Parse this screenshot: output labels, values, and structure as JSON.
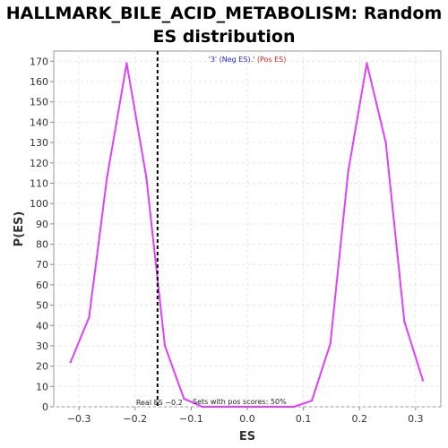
{
  "title_lines": [
    "HALLMARK_BILE_ACID_METABOLISM: Random",
    "ES distribution"
  ],
  "chart_data": {
    "type": "line",
    "title": "HALLMARK_BILE_ACID_METABOLISM: Random ES distribution",
    "xlabel": "ES",
    "ylabel": "P(ES)",
    "xlim": [
      -0.345,
      0.345
    ],
    "ylim": [
      0,
      175
    ],
    "xticks": [
      -0.3,
      -0.2,
      -0.1,
      0.0,
      0.1,
      0.2,
      0.3
    ],
    "xtick_labels": [
      "−0.3",
      "−0.2",
      "−0.1",
      "0.0",
      "0.1",
      "0.2",
      "0.3"
    ],
    "yticks": [
      0,
      10,
      20,
      30,
      40,
      50,
      60,
      70,
      80,
      90,
      100,
      110,
      120,
      130,
      140,
      150,
      160,
      170
    ],
    "grid": true,
    "series": [
      {
        "color": "#e040fb",
        "x": [
          -0.315,
          -0.282,
          -0.25,
          -0.215,
          -0.18,
          -0.147,
          -0.113,
          -0.08,
          -0.048,
          -0.015,
          0.018,
          0.05,
          0.083,
          0.115,
          0.148,
          0.18,
          0.213,
          0.247,
          0.28,
          0.313
        ],
        "y": [
          22,
          44,
          113,
          169,
          113,
          30,
          4,
          0,
          0,
          0,
          0,
          0,
          0,
          3,
          31,
          116,
          169,
          130,
          42,
          13
        ]
      }
    ],
    "reference_line": {
      "x": -0.16,
      "label": "Real ES −0.2",
      "style": "dashed",
      "color": "#000000"
    },
    "legend": {
      "placement": "top-center",
      "entries": [
        {
          "text": "'3' (Neg ES)",
          "color": "#2222dd"
        },
        {
          "text": ".'",
          "color": "#222222"
        },
        {
          "text": " (Pos ES)",
          "color": "#dd2222"
        }
      ]
    },
    "annotation": "Sets with pos scores: 50%"
  }
}
